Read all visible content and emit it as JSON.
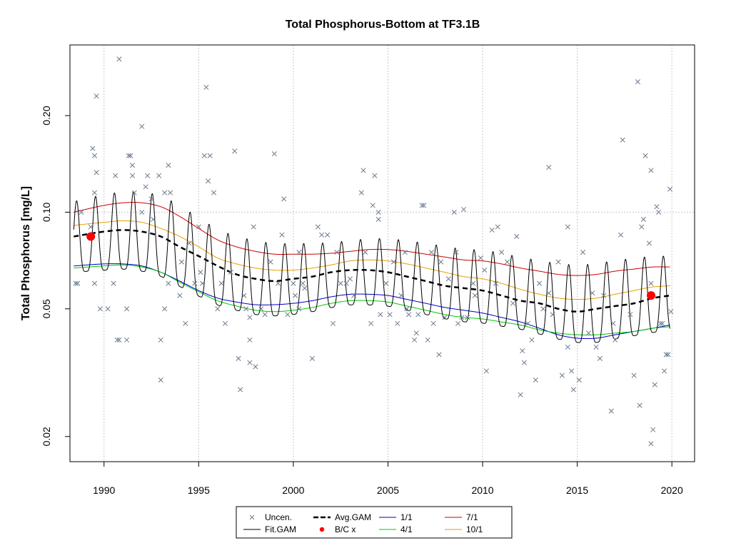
{
  "chart_data": {
    "type": "scatter",
    "title": "Total Phosphorus-Bottom at TF3.1B",
    "xlabel": "",
    "ylabel": "Total Phosphorus [mg/L]",
    "x_scale": "linear",
    "y_scale": "log",
    "xlim": [
      1988.2,
      2021.2
    ],
    "ylim": [
      0.0167,
      0.332
    ],
    "x_ticks": [
      1990,
      1995,
      2000,
      2005,
      2010,
      2015,
      2020
    ],
    "x_tick_labels": [
      "1990",
      "1995",
      "2000",
      "2005",
      "2010",
      "2015",
      "2020"
    ],
    "y_ticks": [
      0.02,
      0.05,
      0.1,
      0.2
    ],
    "y_tick_labels": [
      "0.02",
      "0.05",
      "0.10",
      "0.20"
    ],
    "grid": {
      "vertical_at_x_ticks": true,
      "horizontal_at": [
        0.1
      ]
    },
    "legend": {
      "placement": "bottom-center",
      "entries": [
        {
          "label": "Uncen.",
          "symbol": "x",
          "color": "#6b7a8f"
        },
        {
          "label": "Fit.GAM",
          "symbol": "line",
          "color": "#000000"
        },
        {
          "label": "Avg.GAM",
          "symbol": "dashed-line",
          "color": "#000000"
        },
        {
          "label": "B/C x",
          "symbol": "dot",
          "color": "#ff0000"
        },
        {
          "label": "1/1",
          "symbol": "line",
          "color": "#0000cc"
        },
        {
          "label": "4/1",
          "symbol": "line",
          "color": "#00cc00"
        },
        {
          "label": "7/1",
          "symbol": "line",
          "color": "#cc0000"
        },
        {
          "label": "10/1",
          "symbol": "line",
          "color": "#e69f00"
        }
      ]
    },
    "colors": {
      "points": "#6b7a8f",
      "fit": "#000000",
      "avg": "#000000",
      "bc": "#ff0000",
      "jan": "#0000cc",
      "apr": "#00cc00",
      "jul": "#cc0000",
      "oct": "#e69f00",
      "grid": "#c8c8c8"
    },
    "curves": {
      "avg": [
        [
          1988.4,
          0.084
        ],
        [
          1990,
          0.087
        ],
        [
          1991,
          0.088
        ],
        [
          1992,
          0.087
        ],
        [
          1993,
          0.084
        ],
        [
          1994,
          0.078
        ],
        [
          1995,
          0.073
        ],
        [
          1996,
          0.068
        ],
        [
          1997,
          0.064
        ],
        [
          1998,
          0.062
        ],
        [
          1999,
          0.061
        ],
        [
          2000,
          0.062
        ],
        [
          2001,
          0.063
        ],
        [
          2002,
          0.065
        ],
        [
          2003,
          0.066
        ],
        [
          2004,
          0.066
        ],
        [
          2005,
          0.065
        ],
        [
          2006,
          0.063
        ],
        [
          2007,
          0.061
        ],
        [
          2008,
          0.059
        ],
        [
          2009,
          0.058
        ],
        [
          2010,
          0.057
        ],
        [
          2011,
          0.055
        ],
        [
          2012,
          0.053
        ],
        [
          2013,
          0.052
        ],
        [
          2014,
          0.05
        ],
        [
          2015,
          0.049
        ],
        [
          2016,
          0.05
        ],
        [
          2017,
          0.051
        ],
        [
          2018,
          0.052
        ],
        [
          2019,
          0.054
        ],
        [
          2019.9,
          0.055
        ]
      ],
      "jan": [
        [
          1988.4,
          0.068
        ],
        [
          1990,
          0.069
        ],
        [
          1991,
          0.069
        ],
        [
          1992,
          0.068
        ],
        [
          1993,
          0.065
        ],
        [
          1994,
          0.061
        ],
        [
          1995,
          0.057
        ],
        [
          1996,
          0.054
        ],
        [
          1997,
          0.0525
        ],
        [
          1998,
          0.0515
        ],
        [
          1999,
          0.0515
        ],
        [
          2000,
          0.052
        ],
        [
          2001,
          0.053
        ],
        [
          2002,
          0.0545
        ],
        [
          2003,
          0.0555
        ],
        [
          2004,
          0.0555
        ],
        [
          2005,
          0.055
        ],
        [
          2006,
          0.0535
        ],
        [
          2007,
          0.052
        ],
        [
          2008,
          0.0505
        ],
        [
          2009,
          0.0495
        ],
        [
          2010,
          0.0485
        ],
        [
          2011,
          0.047
        ],
        [
          2012,
          0.0455
        ],
        [
          2013,
          0.0435
        ],
        [
          2014,
          0.0415
        ],
        [
          2015,
          0.0405
        ],
        [
          2016,
          0.0405
        ],
        [
          2017,
          0.0415
        ],
        [
          2018,
          0.0425
        ],
        [
          2019,
          0.0435
        ],
        [
          2019.9,
          0.0445
        ]
      ],
      "apr": [
        [
          1988.4,
          0.067
        ],
        [
          1990,
          0.068
        ],
        [
          1991,
          0.0685
        ],
        [
          1992,
          0.0675
        ],
        [
          1993,
          0.065
        ],
        [
          1994,
          0.0605
        ],
        [
          1995,
          0.0565
        ],
        [
          1996,
          0.053
        ],
        [
          1997,
          0.051
        ],
        [
          1998,
          0.0495
        ],
        [
          1999,
          0.049
        ],
        [
          2000,
          0.0495
        ],
        [
          2001,
          0.0505
        ],
        [
          2002,
          0.052
        ],
        [
          2003,
          0.053
        ],
        [
          2004,
          0.053
        ],
        [
          2005,
          0.0525
        ],
        [
          2006,
          0.051
        ],
        [
          2007,
          0.0495
        ],
        [
          2008,
          0.048
        ],
        [
          2009,
          0.047
        ],
        [
          2010,
          0.0465
        ],
        [
          2011,
          0.0455
        ],
        [
          2012,
          0.0445
        ],
        [
          2013,
          0.043
        ],
        [
          2014,
          0.042
        ],
        [
          2015,
          0.0415
        ],
        [
          2016,
          0.0415
        ],
        [
          2017,
          0.042
        ],
        [
          2018,
          0.0425
        ],
        [
          2019,
          0.0435
        ],
        [
          2019.9,
          0.044
        ]
      ],
      "jul": [
        [
          1988.4,
          0.1
        ],
        [
          1990,
          0.105
        ],
        [
          1991,
          0.107
        ],
        [
          1992,
          0.107
        ],
        [
          1993,
          0.104
        ],
        [
          1994,
          0.097
        ],
        [
          1995,
          0.089
        ],
        [
          1996,
          0.082
        ],
        [
          1997,
          0.078
        ],
        [
          1998,
          0.0755
        ],
        [
          1999,
          0.074
        ],
        [
          2000,
          0.074
        ],
        [
          2001,
          0.074
        ],
        [
          2002,
          0.0745
        ],
        [
          2003,
          0.0755
        ],
        [
          2004,
          0.0765
        ],
        [
          2005,
          0.0765
        ],
        [
          2006,
          0.0755
        ],
        [
          2007,
          0.074
        ],
        [
          2008,
          0.0725
        ],
        [
          2009,
          0.071
        ],
        [
          2010,
          0.0705
        ],
        [
          2011,
          0.069
        ],
        [
          2012,
          0.067
        ],
        [
          2013,
          0.0655
        ],
        [
          2014,
          0.064
        ],
        [
          2015,
          0.0635
        ],
        [
          2016,
          0.064
        ],
        [
          2017,
          0.0655
        ],
        [
          2018,
          0.0665
        ],
        [
          2019,
          0.0675
        ],
        [
          2019.9,
          0.0675
        ]
      ],
      "oct": [
        [
          1988.4,
          0.091
        ],
        [
          1990,
          0.093
        ],
        [
          1991,
          0.094
        ],
        [
          1992,
          0.093
        ],
        [
          1993,
          0.089
        ],
        [
          1994,
          0.084
        ],
        [
          1995,
          0.078
        ],
        [
          1996,
          0.072
        ],
        [
          1997,
          0.069
        ],
        [
          1998,
          0.067
        ],
        [
          1999,
          0.066
        ],
        [
          2000,
          0.066
        ],
        [
          2001,
          0.067
        ],
        [
          2002,
          0.0685
        ],
        [
          2003,
          0.0705
        ],
        [
          2004,
          0.071
        ],
        [
          2005,
          0.0705
        ],
        [
          2006,
          0.069
        ],
        [
          2007,
          0.067
        ],
        [
          2008,
          0.065
        ],
        [
          2009,
          0.063
        ],
        [
          2010,
          0.062
        ],
        [
          2011,
          0.06
        ],
        [
          2012,
          0.0575
        ],
        [
          2013,
          0.0555
        ],
        [
          2014,
          0.054
        ],
        [
          2015,
          0.0535
        ],
        [
          2016,
          0.054
        ],
        [
          2017,
          0.0555
        ],
        [
          2018,
          0.057
        ],
        [
          2019,
          0.0585
        ],
        [
          2019.9,
          0.059
        ]
      ]
    },
    "bc_points": [
      [
        1989.3,
        0.084
      ],
      [
        2018.9,
        0.055
      ]
    ],
    "points": [
      [
        1988.5,
        0.06
      ],
      [
        1988.6,
        0.06
      ],
      [
        1988.8,
        0.1
      ],
      [
        1989.3,
        0.09
      ],
      [
        1989.4,
        0.158
      ],
      [
        1989.5,
        0.15
      ],
      [
        1989.5,
        0.115
      ],
      [
        1989.5,
        0.06
      ],
      [
        1989.6,
        0.133
      ],
      [
        1989.6,
        0.23
      ],
      [
        1989.8,
        0.05
      ],
      [
        1990.2,
        0.05
      ],
      [
        1990.5,
        0.06
      ],
      [
        1990.6,
        0.13
      ],
      [
        1990.7,
        0.04
      ],
      [
        1990.8,
        0.04
      ],
      [
        1990.8,
        0.3
      ],
      [
        1991.2,
        0.04
      ],
      [
        1991.2,
        0.05
      ],
      [
        1991.3,
        0.15
      ],
      [
        1991.4,
        0.15
      ],
      [
        1991.5,
        0.14
      ],
      [
        1991.5,
        0.13
      ],
      [
        1991.6,
        0.115
      ],
      [
        1992.0,
        0.185
      ],
      [
        1992.0,
        0.1
      ],
      [
        1992.2,
        0.12
      ],
      [
        1992.3,
        0.13
      ],
      [
        1992.5,
        0.11
      ],
      [
        1992.6,
        0.095
      ],
      [
        1992.9,
        0.13
      ],
      [
        1993.0,
        0.03
      ],
      [
        1993.0,
        0.04
      ],
      [
        1993.2,
        0.05
      ],
      [
        1993.2,
        0.115
      ],
      [
        1993.4,
        0.14
      ],
      [
        1993.4,
        0.06
      ],
      [
        1993.5,
        0.115
      ],
      [
        1994.0,
        0.055
      ],
      [
        1994.1,
        0.07
      ],
      [
        1994.3,
        0.045
      ],
      [
        1994.5,
        0.08
      ],
      [
        1994.8,
        0.06
      ],
      [
        1995.0,
        0.09
      ],
      [
        1995.1,
        0.065
      ],
      [
        1995.2,
        0.06
      ],
      [
        1995.3,
        0.15
      ],
      [
        1995.4,
        0.245
      ],
      [
        1995.5,
        0.125
      ],
      [
        1995.6,
        0.15
      ],
      [
        1995.8,
        0.115
      ],
      [
        1996.0,
        0.05
      ],
      [
        1996.2,
        0.06
      ],
      [
        1996.4,
        0.045
      ],
      [
        1996.7,
        0.065
      ],
      [
        1996.9,
        0.155
      ],
      [
        1997.1,
        0.035
      ],
      [
        1997.2,
        0.028
      ],
      [
        1997.4,
        0.055
      ],
      [
        1997.5,
        0.05
      ],
      [
        1997.7,
        0.04
      ],
      [
        1997.7,
        0.047
      ],
      [
        1997.7,
        0.034
      ],
      [
        1997.9,
        0.09
      ],
      [
        1998.0,
        0.033
      ],
      [
        1998.3,
        0.05
      ],
      [
        1998.5,
        0.048
      ],
      [
        1998.8,
        0.07
      ],
      [
        1999.0,
        0.152
      ],
      [
        1999.2,
        0.06
      ],
      [
        1999.4,
        0.085
      ],
      [
        1999.5,
        0.11
      ],
      [
        1999.7,
        0.048
      ],
      [
        2000.0,
        0.06
      ],
      [
        2000.1,
        0.055
      ],
      [
        2000.3,
        0.05
      ],
      [
        2000.3,
        0.075
      ],
      [
        2000.5,
        0.06
      ],
      [
        2000.6,
        0.058
      ],
      [
        2001.0,
        0.035
      ],
      [
        2001.3,
        0.09
      ],
      [
        2001.5,
        0.085
      ],
      [
        2001.8,
        0.085
      ],
      [
        2002.1,
        0.045
      ],
      [
        2002.3,
        0.075
      ],
      [
        2002.5,
        0.06
      ],
      [
        2002.8,
        0.06
      ],
      [
        2003.0,
        0.062
      ],
      [
        2003.2,
        0.055
      ],
      [
        2003.6,
        0.115
      ],
      [
        2003.7,
        0.135
      ],
      [
        2003.8,
        0.075
      ],
      [
        2004.1,
        0.045
      ],
      [
        2004.2,
        0.105
      ],
      [
        2004.3,
        0.13
      ],
      [
        2004.5,
        0.1
      ],
      [
        2004.5,
        0.095
      ],
      [
        2004.6,
        0.048
      ],
      [
        2004.9,
        0.06
      ],
      [
        2005.1,
        0.048
      ],
      [
        2005.3,
        0.07
      ],
      [
        2005.5,
        0.045
      ],
      [
        2005.7,
        0.055
      ],
      [
        2005.9,
        0.075
      ],
      [
        2006.0,
        0.05
      ],
      [
        2006.1,
        0.048
      ],
      [
        2006.4,
        0.04
      ],
      [
        2006.5,
        0.042
      ],
      [
        2006.6,
        0.048
      ],
      [
        2006.8,
        0.105
      ],
      [
        2006.9,
        0.105
      ],
      [
        2007.1,
        0.04
      ],
      [
        2007.3,
        0.075
      ],
      [
        2007.4,
        0.045
      ],
      [
        2007.7,
        0.036
      ],
      [
        2007.8,
        0.07
      ],
      [
        2008.0,
        0.047
      ],
      [
        2008.2,
        0.062
      ],
      [
        2008.5,
        0.1
      ],
      [
        2008.6,
        0.075
      ],
      [
        2008.7,
        0.045
      ],
      [
        2008.9,
        0.047
      ],
      [
        2009.0,
        0.102
      ],
      [
        2009.2,
        0.047
      ],
      [
        2009.5,
        0.06
      ],
      [
        2009.6,
        0.055
      ],
      [
        2009.9,
        0.072
      ],
      [
        2010.1,
        0.066
      ],
      [
        2010.2,
        0.032
      ],
      [
        2010.5,
        0.088
      ],
      [
        2010.7,
        0.06
      ],
      [
        2010.8,
        0.09
      ],
      [
        2011.0,
        0.075
      ],
      [
        2011.3,
        0.07
      ],
      [
        2011.6,
        0.052
      ],
      [
        2011.8,
        0.084
      ],
      [
        2012.0,
        0.027
      ],
      [
        2012.1,
        0.037
      ],
      [
        2012.2,
        0.034
      ],
      [
        2012.4,
        0.045
      ],
      [
        2012.6,
        0.04
      ],
      [
        2012.8,
        0.03
      ],
      [
        2013.0,
        0.06
      ],
      [
        2013.2,
        0.05
      ],
      [
        2013.5,
        0.138
      ],
      [
        2013.5,
        0.056
      ],
      [
        2013.7,
        0.048
      ],
      [
        2014.0,
        0.07
      ],
      [
        2014.2,
        0.031
      ],
      [
        2014.5,
        0.09
      ],
      [
        2014.5,
        0.038
      ],
      [
        2014.7,
        0.032
      ],
      [
        2014.8,
        0.028
      ],
      [
        2015.1,
        0.03
      ],
      [
        2015.3,
        0.075
      ],
      [
        2015.6,
        0.042
      ],
      [
        2015.8,
        0.056
      ],
      [
        2016.0,
        0.038
      ],
      [
        2016.2,
        0.035
      ],
      [
        2016.4,
        0.055
      ],
      [
        2016.8,
        0.024
      ],
      [
        2016.9,
        0.045
      ],
      [
        2017.0,
        0.04
      ],
      [
        2017.3,
        0.085
      ],
      [
        2017.4,
        0.168
      ],
      [
        2017.8,
        0.048
      ],
      [
        2018.0,
        0.031
      ],
      [
        2018.2,
        0.255
      ],
      [
        2018.3,
        0.025
      ],
      [
        2018.4,
        0.09
      ],
      [
        2018.5,
        0.095
      ],
      [
        2018.6,
        0.15
      ],
      [
        2018.8,
        0.08
      ],
      [
        2018.9,
        0.135
      ],
      [
        2018.9,
        0.06
      ],
      [
        2018.9,
        0.019
      ],
      [
        2019.0,
        0.021
      ],
      [
        2019.1,
        0.029
      ],
      [
        2019.2,
        0.104
      ],
      [
        2019.3,
        0.1
      ],
      [
        2019.4,
        0.045
      ],
      [
        2019.5,
        0.045
      ],
      [
        2019.6,
        0.032
      ],
      [
        2019.7,
        0.036
      ],
      [
        2019.8,
        0.036
      ],
      [
        2019.9,
        0.118
      ],
      [
        2019.95,
        0.049
      ]
    ]
  }
}
